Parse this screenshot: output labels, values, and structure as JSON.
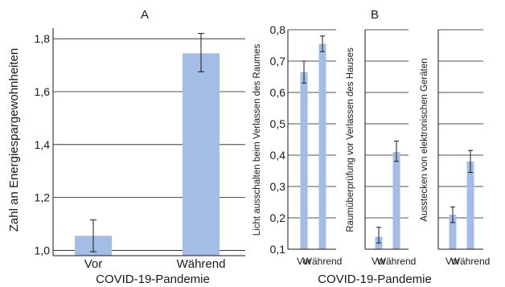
{
  "colors": {
    "bar": "#a3bde6",
    "line": "#1a1a1a"
  },
  "chart_data": [
    {
      "type": "bar",
      "panel_label": "A",
      "categories": [
        "Vor",
        "Während"
      ],
      "values": [
        1.055,
        1.745
      ],
      "error_low": [
        0.995,
        1.675
      ],
      "error_high": [
        1.115,
        1.82
      ],
      "ylabel": "Zahl an Energiespargewohnheiten",
      "xlabel": "COVID-19-Pandemie",
      "ylim": [
        0.98,
        1.84
      ],
      "yticks": [
        1.0,
        1.2,
        1.4,
        1.6,
        1.8
      ],
      "ytick_labels": [
        "1,0",
        "1,2",
        "1,4",
        "1,6",
        "1,8"
      ],
      "grid": true
    },
    {
      "type": "bar",
      "panel_label": "B",
      "categories": [
        "Vor",
        "Während"
      ],
      "values": [
        0.665,
        0.755
      ],
      "error_low": [
        0.63,
        0.73
      ],
      "error_high": [
        0.7,
        0.78
      ],
      "ylabel": "Licht ausschalten beim Verlassen des Raumes",
      "xlabel": "COVID-19-Pandemie",
      "ylim": [
        0.1,
        0.8
      ],
      "yticks": [
        0.1,
        0.2,
        0.3,
        0.4,
        0.5,
        0.6,
        0.7,
        0.8
      ],
      "ytick_labels": [
        "0,1",
        "0,2",
        "0,3",
        "0,4",
        "0,5",
        "0,6",
        "0,7",
        "0,8"
      ],
      "grid": true
    },
    {
      "type": "bar",
      "categories": [
        "Vor",
        "Während"
      ],
      "values": [
        0.14,
        0.41
      ],
      "error_low": [
        0.12,
        0.38
      ],
      "error_high": [
        0.17,
        0.445
      ],
      "ylabel": "Raumüberprüfung vor Verlassen des Hauses",
      "ylim": [
        0.1,
        0.8
      ],
      "grid": true
    },
    {
      "type": "bar",
      "categories": [
        "Vor",
        "Während"
      ],
      "values": [
        0.21,
        0.38
      ],
      "error_low": [
        0.185,
        0.345
      ],
      "error_high": [
        0.235,
        0.415
      ],
      "ylabel": "Ausstecken von elektronischen Geräten",
      "ylim": [
        0.1,
        0.8
      ],
      "grid": true
    }
  ]
}
